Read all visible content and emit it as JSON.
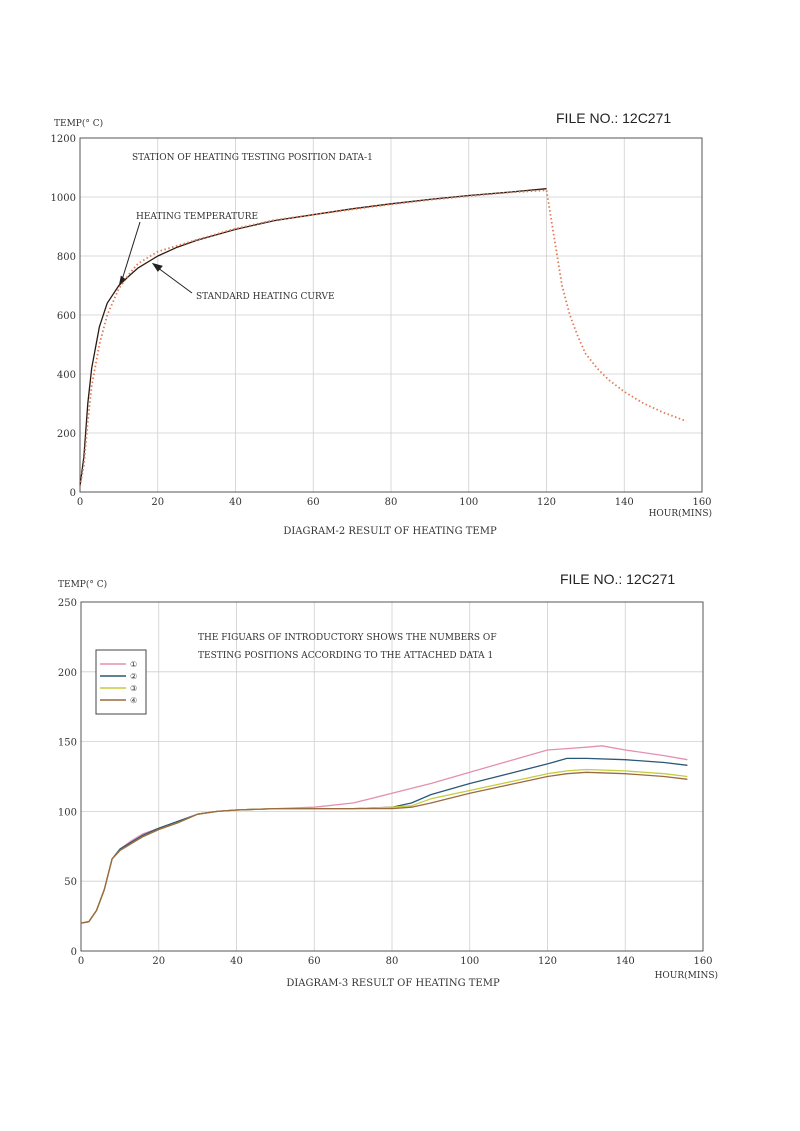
{
  "page": {
    "file_no_1": "FILE NO.: 12C271",
    "file_no_2": "FILE NO.: 12C271"
  },
  "chart_data": [
    {
      "type": "line",
      "title": "STATION OF HEATING TESTING POSITION DATA-1",
      "caption": "DIAGRAM-2 RESULT OF HEATING TEMP",
      "ylabel": "TEMP(° C)",
      "xlabel": "HOUR(MINS)",
      "xlim": [
        0,
        160
      ],
      "ylim": [
        0,
        1200
      ],
      "xticks": [
        0,
        20,
        40,
        60,
        80,
        100,
        120,
        140,
        160
      ],
      "yticks": [
        0,
        200,
        400,
        600,
        800,
        1000,
        1200
      ],
      "grid": true,
      "annotations": [
        "HEATING TEMPERATURE",
        "STANDARD HEATING CURVE"
      ],
      "series": [
        {
          "color": "#2b1a14",
          "style": "solid",
          "x": [
            0,
            1,
            2,
            3,
            5,
            7,
            10,
            13,
            15,
            20,
            25,
            30,
            40,
            50,
            60,
            70,
            80,
            90,
            100,
            110,
            120
          ],
          "y": [
            20,
            120,
            300,
            420,
            560,
            640,
            700,
            737,
            760,
            800,
            830,
            853,
            890,
            920,
            940,
            960,
            977,
            992,
            1005,
            1016,
            1028
          ]
        },
        {
          "color": "#e07a55",
          "style": "dotted",
          "x": [
            0,
            1,
            2,
            3,
            5,
            7,
            10,
            13,
            15,
            20,
            25,
            30,
            40,
            50,
            60,
            70,
            80,
            90,
            100,
            110,
            120,
            122,
            124,
            126,
            128,
            130,
            133,
            136,
            140,
            145,
            150,
            156
          ],
          "y": [
            20,
            90,
            240,
            360,
            500,
            600,
            690,
            745,
            775,
            815,
            835,
            855,
            893,
            922,
            940,
            958,
            975,
            990,
            1003,
            1015,
            1023,
            860,
            700,
            600,
            530,
            470,
            420,
            380,
            340,
            300,
            270,
            240
          ]
        }
      ]
    },
    {
      "type": "line",
      "title": "THE FIGUARS OF INTRODUCTORY SHOWS THE NUMBERS OF TESTING POSITIONS ACCORDING TO THE ATTACHED DATA 1",
      "caption": "DIAGRAM-3 RESULT OF HEATING TEMP",
      "ylabel": "TEMP(° C)",
      "xlabel": "HOUR(MINS)",
      "xlim": [
        0,
        160
      ],
      "ylim": [
        0,
        250
      ],
      "xticks": [
        0,
        20,
        40,
        60,
        80,
        100,
        120,
        140,
        160
      ],
      "yticks": [
        0,
        50,
        100,
        150,
        200,
        250
      ],
      "grid": true,
      "legend": "top-left",
      "series": [
        {
          "name": "①",
          "color": "#e58fb0",
          "x": [
            0,
            2,
            4,
            6,
            8,
            10,
            13,
            16,
            20,
            25,
            30,
            35,
            40,
            50,
            60,
            70,
            80,
            90,
            100,
            110,
            120,
            125,
            130,
            134,
            140,
            150,
            156
          ],
          "y": [
            20,
            21,
            29,
            44,
            66,
            73,
            79,
            84,
            88,
            93,
            98,
            100,
            101,
            102,
            103,
            106,
            113,
            120,
            128,
            136,
            144,
            145,
            146,
            147,
            144,
            140,
            137
          ]
        },
        {
          "name": "②",
          "color": "#2a5877",
          "x": [
            0,
            2,
            4,
            6,
            8,
            10,
            13,
            16,
            20,
            25,
            30,
            35,
            40,
            50,
            60,
            70,
            80,
            85,
            90,
            100,
            110,
            120,
            125,
            130,
            140,
            150,
            156
          ],
          "y": [
            20,
            21,
            29,
            44,
            66,
            73,
            78,
            83,
            88,
            93,
            98,
            100,
            101,
            102,
            102,
            102,
            103,
            106,
            112,
            120,
            127,
            134,
            138,
            138,
            137,
            135,
            133
          ]
        },
        {
          "name": "③",
          "color": "#c6cc3d",
          "x": [
            0,
            2,
            4,
            6,
            8,
            10,
            13,
            16,
            20,
            25,
            30,
            35,
            40,
            50,
            60,
            70,
            80,
            85,
            90,
            100,
            110,
            120,
            125,
            130,
            140,
            150,
            156
          ],
          "y": [
            20,
            21,
            29,
            44,
            66,
            72,
            77,
            82,
            87,
            92,
            98,
            100,
            101,
            102,
            102,
            102,
            103,
            104,
            109,
            115,
            121,
            127,
            129,
            130,
            129,
            127,
            125
          ]
        },
        {
          "name": "④",
          "color": "#9b6a3e",
          "x": [
            0,
            2,
            4,
            6,
            8,
            10,
            13,
            16,
            20,
            25,
            30,
            35,
            40,
            50,
            60,
            70,
            80,
            85,
            90,
            100,
            110,
            120,
            125,
            130,
            140,
            150,
            156
          ],
          "y": [
            20,
            21,
            29,
            44,
            66,
            72,
            77,
            82,
            87,
            92,
            98,
            100,
            101,
            102,
            102,
            102,
            102,
            103,
            106,
            113,
            119,
            125,
            127,
            128,
            127,
            125,
            123
          ]
        }
      ]
    }
  ]
}
